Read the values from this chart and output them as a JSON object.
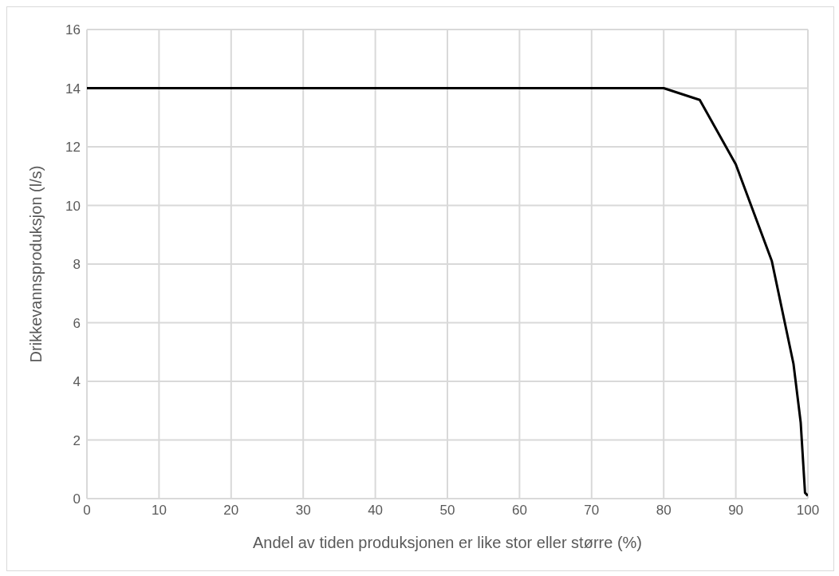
{
  "chart_data": {
    "type": "line",
    "xlabel": "Andel av tiden produksjonen er like stor eller større (%)",
    "ylabel": "Drikkevannsproduksjon  (l/s)",
    "x": [
      0,
      80,
      85,
      90,
      95,
      98,
      99,
      99.6,
      100
    ],
    "series": [
      {
        "color": "#000000",
        "values": [
          14,
          14,
          13.6,
          11.4,
          8.1,
          4.6,
          2.6,
          0.2,
          0.1
        ]
      }
    ],
    "xlim": [
      0,
      100
    ],
    "xticks": [
      0,
      10,
      20,
      30,
      40,
      50,
      60,
      70,
      80,
      90,
      100
    ],
    "ylim": [
      0,
      16
    ],
    "yticks": [
      0,
      2,
      4,
      6,
      8,
      10,
      12,
      14,
      16
    ],
    "grid": true,
    "marker": "none",
    "line_style": "solid"
  }
}
